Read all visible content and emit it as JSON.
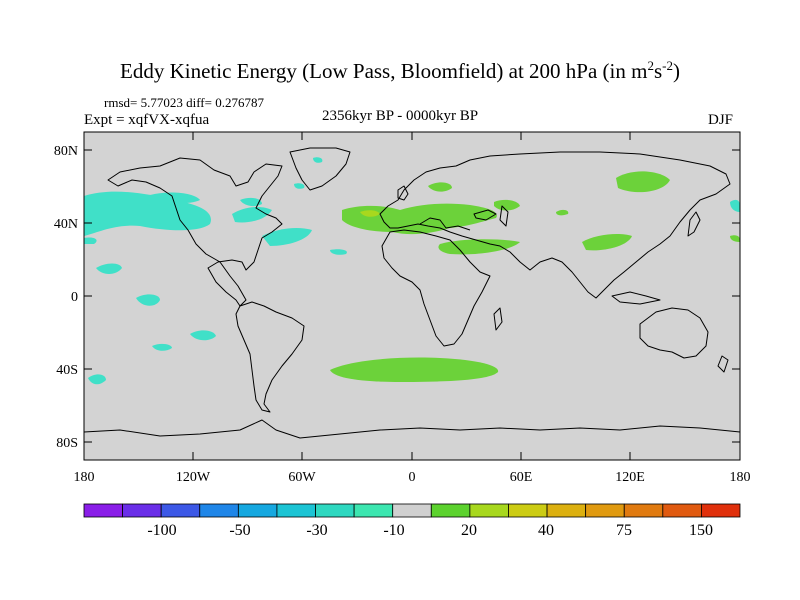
{
  "title": {
    "main": "Eddy Kinetic Energy (Low Pass, Bloomfield) at 200 hPa (in m",
    "sup1": "2",
    "mid": "s",
    "sup2": "-2",
    "close": ")"
  },
  "stats": {
    "text": "rmsd= 5.77023  diff= 0.276787"
  },
  "experiment": {
    "text": "Expt = xqfVX-xqfua"
  },
  "period": {
    "text": "2356kyr BP - 0000kyr BP"
  },
  "season": {
    "text": "DJF"
  },
  "map": {
    "lat_labels": [
      "80N",
      "40N",
      "0",
      "40S",
      "80S"
    ],
    "lon_labels": [
      "180",
      "120W",
      "60W",
      "0",
      "60E",
      "120E",
      "180"
    ],
    "land_color": "#d3d3d3",
    "coast_color": "#000000"
  },
  "anomaly_regions": [
    {
      "name": "north-pacific-cyan",
      "color": "#40e0c8"
    },
    {
      "name": "north-atlantic-cyan",
      "color": "#40e0c8"
    },
    {
      "name": "europe-green",
      "color": "#6cd23a"
    },
    {
      "name": "siberia-green",
      "color": "#6cd23a"
    },
    {
      "name": "southern-ocean-green",
      "color": "#6cd23a"
    },
    {
      "name": "south-pacific-cyan",
      "color": "#40e0c8"
    }
  ],
  "colorbar": {
    "colors": [
      "#8a1ee8",
      "#6a2ee8",
      "#3c58e6",
      "#1f86e8",
      "#16a8e0",
      "#1cc4d4",
      "#2ed8c0",
      "#3ce6b0",
      "#d0d0d0",
      "#5cd22e",
      "#a8d81e",
      "#cccc14",
      "#dcb010",
      "#e09a10",
      "#e07a10",
      "#e05a10",
      "#e0300c"
    ],
    "labels": [
      "-100",
      "-50",
      "-30",
      "-10",
      "20",
      "40",
      "75",
      "150"
    ]
  }
}
